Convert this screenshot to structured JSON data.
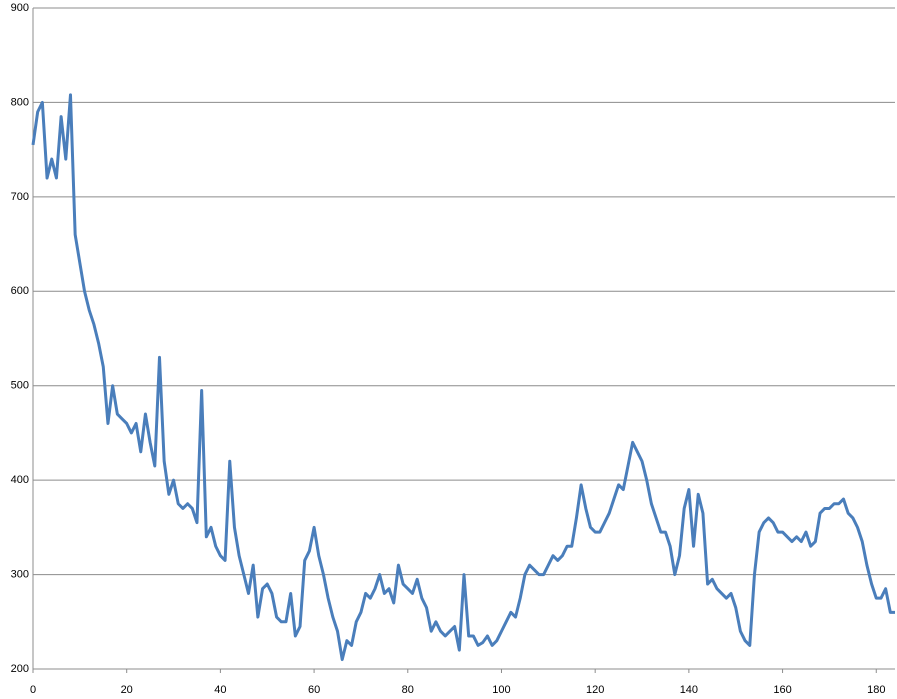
{
  "chart_data": {
    "type": "line",
    "x": [
      0,
      1,
      2,
      3,
      4,
      5,
      6,
      7,
      8,
      9,
      10,
      11,
      12,
      13,
      14,
      15,
      16,
      17,
      18,
      19,
      20,
      21,
      22,
      23,
      24,
      25,
      26,
      27,
      28,
      29,
      30,
      31,
      32,
      33,
      34,
      35,
      36,
      37,
      38,
      39,
      40,
      41,
      42,
      43,
      44,
      45,
      46,
      47,
      48,
      49,
      50,
      51,
      52,
      53,
      54,
      55,
      56,
      57,
      58,
      59,
      60,
      61,
      62,
      63,
      64,
      65,
      66,
      67,
      68,
      69,
      70,
      71,
      72,
      73,
      74,
      75,
      76,
      77,
      78,
      79,
      80,
      81,
      82,
      83,
      84,
      85,
      86,
      87,
      88,
      89,
      90,
      91,
      92,
      93,
      94,
      95,
      96,
      97,
      98,
      99,
      100,
      101,
      102,
      103,
      104,
      105,
      106,
      107,
      108,
      109,
      110,
      111,
      112,
      113,
      114,
      115,
      116,
      117,
      118,
      119,
      120,
      121,
      122,
      123,
      124,
      125,
      126,
      127,
      128,
      129,
      130,
      131,
      132,
      133,
      134,
      135,
      136,
      137,
      138,
      139,
      140,
      141,
      142,
      143,
      144,
      145,
      146,
      147,
      148,
      149,
      150,
      151,
      152,
      153,
      154,
      155,
      156,
      157,
      158,
      159,
      160,
      161,
      162,
      163,
      164,
      165,
      166,
      167,
      168,
      169,
      170,
      171,
      172,
      173,
      174,
      175,
      176,
      177,
      178,
      179,
      180,
      181,
      182,
      183,
      184
    ],
    "series": [
      {
        "color": "#4a7ebb",
        "values": [
          755,
          790,
          800,
          720,
          740,
          720,
          785,
          740,
          808,
          660,
          630,
          600,
          580,
          565,
          545,
          520,
          460,
          500,
          470,
          465,
          460,
          450,
          460,
          430,
          470,
          440,
          415,
          530,
          420,
          385,
          400,
          375,
          370,
          375,
          370,
          355,
          495,
          340,
          350,
          330,
          320,
          315,
          420,
          350,
          320,
          300,
          280,
          310,
          255,
          285,
          290,
          280,
          255,
          250,
          250,
          280,
          235,
          245,
          315,
          325,
          350,
          320,
          300,
          275,
          255,
          240,
          210,
          230,
          225,
          250,
          260,
          280,
          275,
          285,
          300,
          280,
          285,
          270,
          310,
          290,
          285,
          280,
          295,
          275,
          265,
          240,
          250,
          240,
          235,
          240,
          245,
          220,
          300,
          235,
          235,
          225,
          228,
          235,
          225,
          230,
          240,
          250,
          260,
          255,
          275,
          300,
          310,
          305,
          300,
          300,
          310,
          320,
          315,
          320,
          330,
          330,
          360,
          395,
          370,
          350,
          345,
          345,
          355,
          365,
          380,
          395,
          390,
          415,
          440,
          430,
          420,
          400,
          375,
          360,
          345,
          345,
          330,
          300,
          320,
          370,
          390,
          330,
          385,
          365,
          290,
          295,
          285,
          280,
          275,
          280,
          265,
          240,
          230,
          225,
          300,
          345,
          355,
          360,
          355,
          345,
          345,
          340,
          335,
          340,
          335,
          345,
          330,
          335,
          365,
          370,
          370,
          375,
          375,
          380,
          365,
          360,
          350,
          335,
          310,
          290,
          275,
          275,
          285,
          260,
          260
        ]
      }
    ],
    "xlim": [
      0,
      184
    ],
    "ylim": [
      200,
      900
    ],
    "xticks": [
      0,
      20,
      40,
      60,
      80,
      100,
      120,
      140,
      160,
      180
    ],
    "yticks": [
      200,
      300,
      400,
      500,
      600,
      700,
      800,
      900
    ],
    "grid": true
  }
}
